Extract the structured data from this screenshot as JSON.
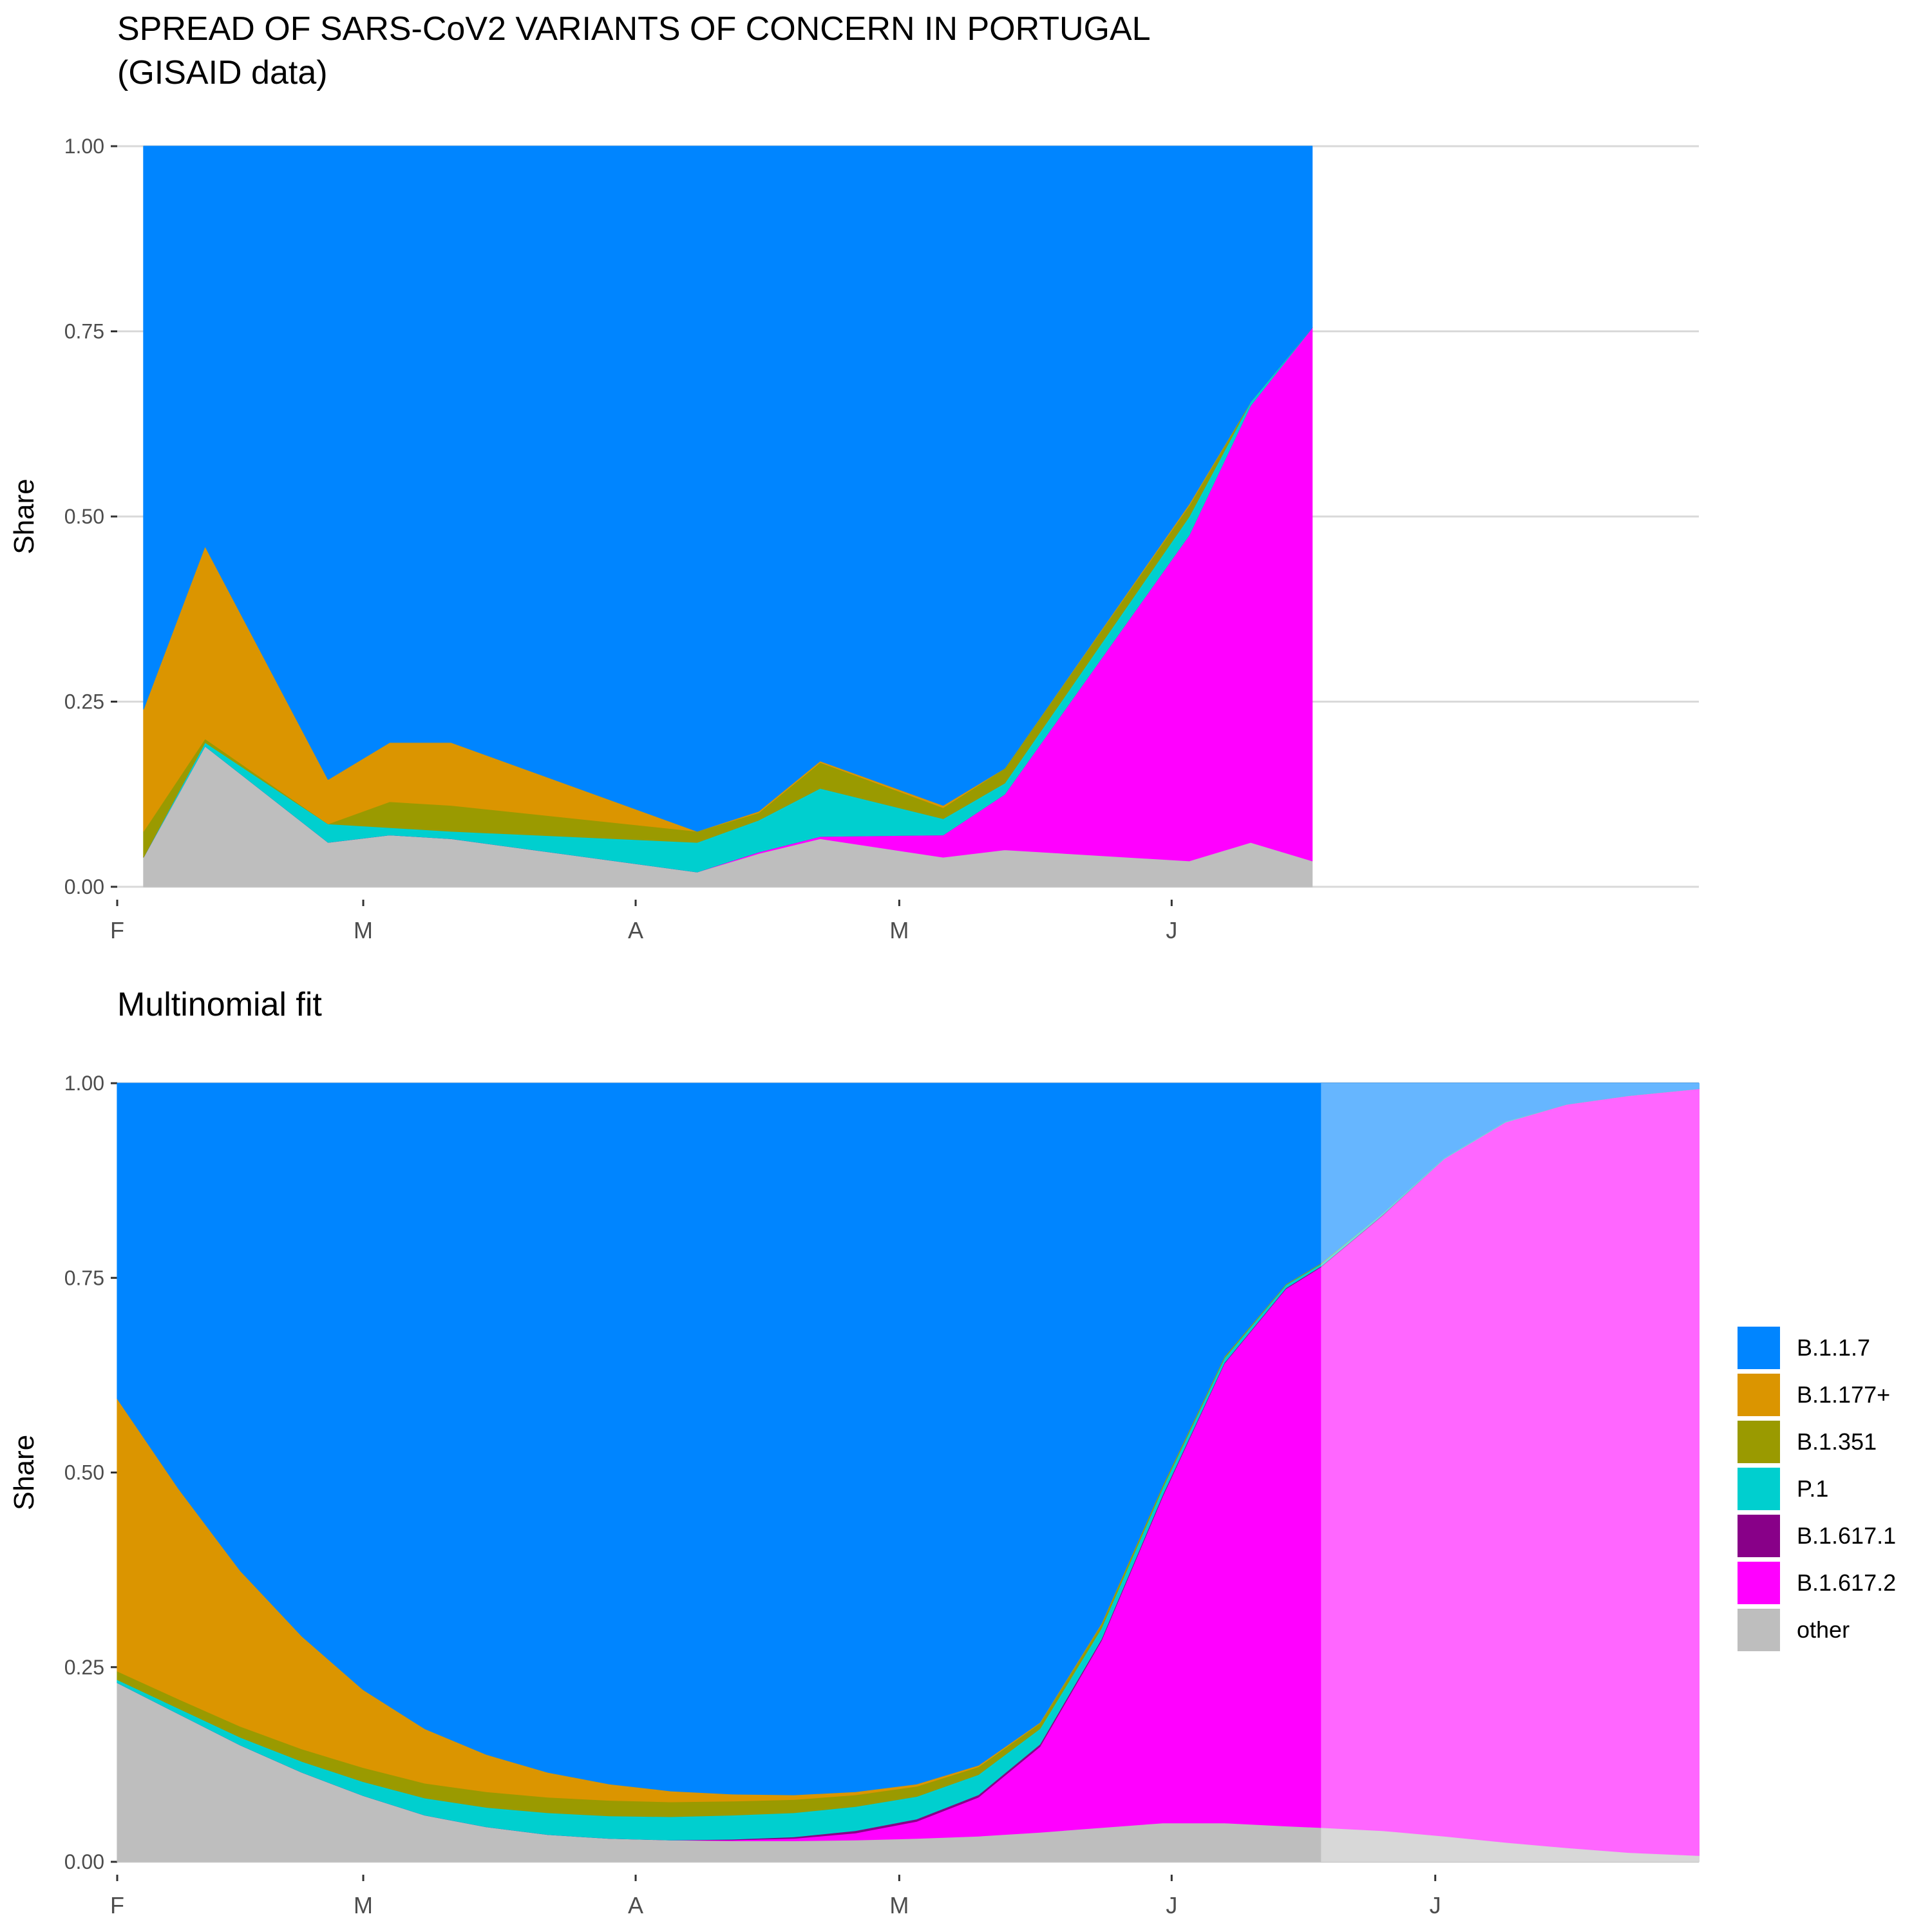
{
  "title": "SPREAD OF SARS-CoV2 VARIANTS OF CONCERN IN PORTUGAL",
  "subtitle": "(GISAID data)",
  "colors": {
    "B.1.1.7": "#0085FF",
    "B.1.177+": "#DB9500",
    "B.1.351": "#9A9A00",
    "P.1": "#00CFCF",
    "B.1.617.1": "#880088",
    "B.1.617.2": "#FF00FF",
    "other": "#BEBEBE",
    "grid": "#D9D9D9"
  },
  "legend": {
    "position": "right",
    "items": [
      "B.1.1.7",
      "B.1.177+",
      "B.1.351",
      "P.1",
      "B.1.617.1",
      "B.1.617.2",
      "other"
    ]
  },
  "chart_data": [
    {
      "type": "area",
      "title": "",
      "xlabel": "",
      "ylabel": "Share",
      "xlim": [
        "2021-02-01",
        "2021-07-31"
      ],
      "ylim": [
        0,
        1
      ],
      "grid": "horizontal",
      "x_tick_labels": [
        {
          "date": "2021-02-01",
          "label": "F"
        },
        {
          "date": "2021-03-01",
          "label": "M"
        },
        {
          "date": "2021-04-01",
          "label": "A"
        },
        {
          "date": "2021-05-01",
          "label": "M"
        },
        {
          "date": "2021-06-01",
          "label": "J"
        }
      ],
      "y_tick_labels": [
        "0.00",
        "0.25",
        "0.50",
        "0.75",
        "1.00"
      ],
      "y_ticks": [
        0,
        0.25,
        0.5,
        0.75,
        1
      ],
      "stack_order": [
        "other",
        "B.1.617.2",
        "B.1.617.1",
        "P.1",
        "B.1.351",
        "B.1.177+",
        "B.1.1.7"
      ],
      "x": [
        "2021-02-04",
        "2021-02-11",
        "2021-02-25",
        "2021-03-04",
        "2021-03-11",
        "2021-04-08",
        "2021-04-15",
        "2021-04-22",
        "2021-05-06",
        "2021-05-13",
        "2021-06-03",
        "2021-06-10",
        "2021-06-17"
      ],
      "series": [
        {
          "name": "other",
          "values": [
            0.04,
            0.19,
            0.06,
            0.07,
            0.065,
            0.02,
            0.045,
            0.065,
            0.04,
            0.05,
            0.035,
            0.06,
            0.035
          ]
        },
        {
          "name": "B.1.617.2",
          "values": [
            0,
            0,
            0,
            0,
            0,
            0,
            0.002,
            0.003,
            0.03,
            0.075,
            0.44,
            0.59,
            0.72
          ]
        },
        {
          "name": "B.1.617.1",
          "values": [
            0,
            0,
            0,
            0,
            0,
            0,
            0,
            0,
            0,
            0,
            0,
            0,
            0
          ]
        },
        {
          "name": "P.1",
          "values": [
            0,
            0.005,
            0.025,
            0.01,
            0.01,
            0.04,
            0.043,
            0.065,
            0.022,
            0.015,
            0.025,
            0.005,
            0
          ]
        },
        {
          "name": "B.1.351",
          "values": [
            0.035,
            0.005,
            0,
            0.035,
            0.035,
            0.015,
            0.01,
            0.035,
            0.015,
            0.02,
            0.015,
            0,
            0
          ]
        },
        {
          "name": "B.1.177+",
          "values": [
            0.165,
            0.26,
            0.06,
            0.08,
            0.085,
            0,
            0.002,
            0.002,
            0.003,
            0,
            0.002,
            0,
            0
          ]
        },
        {
          "name": "B.1.1.7",
          "values": [
            0.76,
            0.54,
            0.855,
            0.805,
            0.805,
            0.925,
            0.898,
            0.83,
            0.89,
            0.84,
            0.483,
            0.345,
            0.245
          ]
        }
      ]
    },
    {
      "type": "area",
      "title": "Multinomial fit",
      "xlabel": "",
      "ylabel": "Share",
      "xlim": [
        "2021-02-01",
        "2021-07-31"
      ],
      "ylim": [
        0,
        1
      ],
      "grid": "horizontal",
      "forecast_from": "2021-06-18",
      "x_tick_labels": [
        {
          "date": "2021-02-01",
          "label": "F"
        },
        {
          "date": "2021-03-01",
          "label": "M"
        },
        {
          "date": "2021-04-01",
          "label": "A"
        },
        {
          "date": "2021-05-01",
          "label": "M"
        },
        {
          "date": "2021-06-01",
          "label": "J"
        },
        {
          "date": "2021-07-01",
          "label": "J"
        }
      ],
      "y_tick_labels": [
        "0.00",
        "0.25",
        "0.50",
        "0.75",
        "1.00"
      ],
      "y_ticks": [
        0,
        0.25,
        0.5,
        0.75,
        1
      ],
      "stack_order": [
        "other",
        "B.1.617.2",
        "B.1.617.1",
        "P.1",
        "B.1.351",
        "B.1.177+",
        "B.1.1.7"
      ],
      "x": [
        "2021-02-01",
        "2021-02-08",
        "2021-02-15",
        "2021-02-22",
        "2021-03-01",
        "2021-03-08",
        "2021-03-15",
        "2021-03-22",
        "2021-03-29",
        "2021-04-05",
        "2021-04-12",
        "2021-04-19",
        "2021-04-26",
        "2021-05-03",
        "2021-05-10",
        "2021-05-17",
        "2021-05-24",
        "2021-05-31",
        "2021-06-07",
        "2021-06-14",
        "2021-06-18",
        "2021-06-25",
        "2021-07-02",
        "2021-07-09",
        "2021-07-16",
        "2021-07-23",
        "2021-07-31"
      ],
      "series": [
        {
          "name": "other",
          "values": [
            0.23,
            0.19,
            0.15,
            0.115,
            0.085,
            0.06,
            0.045,
            0.035,
            0.03,
            0.028,
            0.027,
            0.027,
            0.028,
            0.03,
            0.033,
            0.038,
            0.044,
            0.05,
            0.05,
            0.046,
            0.044,
            0.04,
            0.033,
            0.025,
            0.018,
            0.012,
            0.008
          ]
        },
        {
          "name": "B.1.617.2",
          "values": [
            0,
            0,
            0,
            0,
            0,
            0,
            0,
            0,
            0,
            0,
            0.001,
            0.003,
            0.009,
            0.022,
            0.05,
            0.11,
            0.24,
            0.42,
            0.59,
            0.69,
            0.72,
            0.79,
            0.87,
            0.925,
            0.955,
            0.972,
            0.985
          ]
        },
        {
          "name": "B.1.617.1",
          "values": [
            0,
            0,
            0,
            0,
            0,
            0,
            0,
            0,
            0,
            0,
            0.001,
            0.002,
            0.003,
            0.003,
            0.003,
            0.003,
            0.002,
            0.002,
            0.001,
            0.001,
            0.001,
            0.001,
            0,
            0,
            0,
            0,
            0
          ]
        },
        {
          "name": "P.1",
          "values": [
            0.004,
            0.007,
            0.01,
            0.014,
            0.018,
            0.022,
            0.025,
            0.028,
            0.029,
            0.03,
            0.031,
            0.031,
            0.031,
            0.029,
            0.026,
            0.02,
            0.014,
            0.009,
            0.006,
            0.004,
            0.003,
            0.002,
            0.001,
            0.001,
            0,
            0,
            0
          ]
        },
        {
          "name": "B.1.351",
          "values": [
            0.011,
            0.012,
            0.014,
            0.016,
            0.018,
            0.019,
            0.02,
            0.02,
            0.02,
            0.019,
            0.018,
            0.017,
            0.015,
            0.013,
            0.01,
            0.007,
            0.005,
            0.003,
            0.002,
            0.001,
            0.001,
            0,
            0,
            0,
            0,
            0,
            0
          ]
        },
        {
          "name": "B.1.177+",
          "values": [
            0.35,
            0.27,
            0.2,
            0.145,
            0.1,
            0.07,
            0.048,
            0.032,
            0.021,
            0.014,
            0.009,
            0.006,
            0.004,
            0.003,
            0.002,
            0.001,
            0.001,
            0,
            0,
            0,
            0,
            0,
            0,
            0,
            0,
            0,
            0
          ]
        },
        {
          "name": "B.1.1.7",
          "values": [
            0.405,
            0.521,
            0.626,
            0.71,
            0.779,
            0.829,
            0.862,
            0.885,
            0.9,
            0.909,
            0.913,
            0.914,
            0.91,
            0.9,
            0.876,
            0.821,
            0.694,
            0.516,
            0.351,
            0.258,
            0.231,
            0.167,
            0.096,
            0.049,
            0.027,
            0.016,
            0.007
          ]
        }
      ]
    }
  ]
}
